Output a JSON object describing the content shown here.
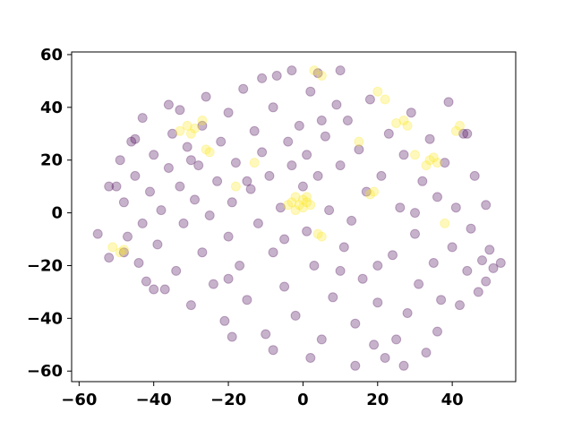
{
  "chart_data": {
    "type": "scatter",
    "title": "",
    "xlabel": "",
    "ylabel": "",
    "xlim": [
      -62,
      57
    ],
    "ylim": [
      -64,
      61
    ],
    "x_ticks": [
      -60,
      -40,
      -20,
      0,
      20,
      40
    ],
    "y_ticks": [
      -60,
      -40,
      -20,
      0,
      20,
      40,
      60
    ],
    "x_tick_labels": [
      "−60",
      "−40",
      "−20",
      "0",
      "20",
      "40"
    ],
    "y_tick_labels": [
      "−60",
      "−40",
      "−20",
      "0",
      "20",
      "40",
      "60"
    ],
    "grid": false,
    "legend": "none",
    "marker_alpha": 0.3,
    "series": [
      {
        "color": "#440154",
        "points": [
          [
            -55,
            -8
          ],
          [
            -52,
            10
          ],
          [
            -50,
            10
          ],
          [
            -49,
            20
          ],
          [
            -48,
            4
          ],
          [
            -47,
            -9
          ],
          [
            -46,
            27
          ],
          [
            -45,
            14
          ],
          [
            -44,
            -19
          ],
          [
            -43,
            -4
          ],
          [
            -43,
            36
          ],
          [
            -42,
            -26
          ],
          [
            -41,
            8
          ],
          [
            -40,
            22
          ],
          [
            -39,
            -12
          ],
          [
            -38,
            1
          ],
          [
            -37,
            -29
          ],
          [
            -36,
            17
          ],
          [
            -35,
            30
          ],
          [
            -34,
            -22
          ],
          [
            -33,
            10
          ],
          [
            -33,
            39
          ],
          [
            -32,
            -4
          ],
          [
            -31,
            25
          ],
          [
            -30,
            -35
          ],
          [
            -29,
            5
          ],
          [
            -28,
            18
          ],
          [
            -27,
            -15
          ],
          [
            -27,
            33
          ],
          [
            -26,
            44
          ],
          [
            -25,
            -1
          ],
          [
            -24,
            -27
          ],
          [
            -23,
            12
          ],
          [
            -22,
            27
          ],
          [
            -21,
            -41
          ],
          [
            -20,
            -9
          ],
          [
            -20,
            38
          ],
          [
            -19,
            4
          ],
          [
            -18,
            19
          ],
          [
            -17,
            -20
          ],
          [
            -16,
            47
          ],
          [
            -15,
            -33
          ],
          [
            -14,
            9
          ],
          [
            -13,
            31
          ],
          [
            -12,
            -4
          ],
          [
            -11,
            23
          ],
          [
            -10,
            -46
          ],
          [
            -9,
            14
          ],
          [
            -8,
            40
          ],
          [
            -8,
            -15
          ],
          [
            -7,
            52
          ],
          [
            -6,
            2
          ],
          [
            -5,
            -28
          ],
          [
            -4,
            27
          ],
          [
            -3,
            18
          ],
          [
            -2,
            -39
          ],
          [
            -1,
            33
          ],
          [
            0,
            10
          ],
          [
            1,
            -7
          ],
          [
            1,
            22
          ],
          [
            2,
            46
          ],
          [
            3,
            -20
          ],
          [
            4,
            14
          ],
          [
            5,
            -48
          ],
          [
            6,
            29
          ],
          [
            7,
            1
          ],
          [
            8,
            -32
          ],
          [
            9,
            41
          ],
          [
            10,
            18
          ],
          [
            11,
            -13
          ],
          [
            12,
            35
          ],
          [
            13,
            -3
          ],
          [
            14,
            -42
          ],
          [
            15,
            24
          ],
          [
            16,
            -25
          ],
          [
            17,
            8
          ],
          [
            18,
            43
          ],
          [
            19,
            -50
          ],
          [
            20,
            -34
          ],
          [
            21,
            14
          ],
          [
            22,
            -55
          ],
          [
            23,
            30
          ],
          [
            24,
            -16
          ],
          [
            25,
            -48
          ],
          [
            26,
            2
          ],
          [
            27,
            22
          ],
          [
            28,
            -38
          ],
          [
            29,
            38
          ],
          [
            30,
            -8
          ],
          [
            31,
            -27
          ],
          [
            32,
            12
          ],
          [
            33,
            -53
          ],
          [
            34,
            28
          ],
          [
            35,
            -19
          ],
          [
            36,
            6
          ],
          [
            37,
            -33
          ],
          [
            38,
            19
          ],
          [
            40,
            -13
          ],
          [
            41,
            2
          ],
          [
            42,
            -35
          ],
          [
            43,
            30
          ],
          [
            44,
            -22
          ],
          [
            45,
            -6
          ],
          [
            46,
            14
          ],
          [
            47,
            -30
          ],
          [
            48,
            -18
          ],
          [
            49,
            -26
          ],
          [
            50,
            -14
          ],
          [
            51,
            -21
          ],
          [
            53,
            -19
          ],
          [
            44,
            30
          ],
          [
            39,
            42
          ],
          [
            -11,
            51
          ],
          [
            -3,
            54
          ],
          [
            4,
            53
          ],
          [
            10,
            54
          ],
          [
            -40,
            -29
          ],
          [
            -48,
            -15
          ],
          [
            -52,
            -17
          ],
          [
            -45,
            28
          ],
          [
            -36,
            41
          ],
          [
            -19,
            -47
          ],
          [
            -8,
            -52
          ],
          [
            2,
            -55
          ],
          [
            14,
            -58
          ],
          [
            27,
            -58
          ],
          [
            36,
            -45
          ],
          [
            49,
            3
          ],
          [
            -30,
            20
          ],
          [
            -15,
            12
          ],
          [
            -5,
            -10
          ],
          [
            10,
            -22
          ],
          [
            20,
            -20
          ],
          [
            30,
            0
          ],
          [
            -20,
            -25
          ],
          [
            5,
            35
          ]
        ]
      },
      {
        "color": "#fde725",
        "points": [
          [
            -3,
            4
          ],
          [
            -2,
            6
          ],
          [
            -1,
            3
          ],
          [
            0,
            5
          ],
          [
            0,
            2
          ],
          [
            1,
            4
          ],
          [
            -2,
            1
          ],
          [
            1,
            6
          ],
          [
            -4,
            3
          ],
          [
            2,
            3
          ],
          [
            -31,
            33
          ],
          [
            -29,
            32
          ],
          [
            -27,
            35
          ],
          [
            -30,
            30
          ],
          [
            -33,
            31
          ],
          [
            34,
            20
          ],
          [
            36,
            19
          ],
          [
            35,
            21
          ],
          [
            33,
            18
          ],
          [
            27,
            35
          ],
          [
            28,
            33
          ],
          [
            25,
            34
          ],
          [
            42,
            33
          ],
          [
            41,
            31
          ],
          [
            19,
            8
          ],
          [
            18,
            7
          ],
          [
            -49,
            -15
          ],
          [
            -48,
            -14
          ],
          [
            -51,
            -13
          ],
          [
            5,
            -9
          ],
          [
            4,
            -8
          ],
          [
            -26,
            24
          ],
          [
            -25,
            23
          ],
          [
            20,
            46
          ],
          [
            22,
            43
          ],
          [
            3,
            54
          ],
          [
            5,
            52
          ],
          [
            -13,
            19
          ],
          [
            30,
            22
          ],
          [
            -18,
            10
          ],
          [
            15,
            27
          ],
          [
            38,
            -4
          ]
        ]
      }
    ]
  }
}
